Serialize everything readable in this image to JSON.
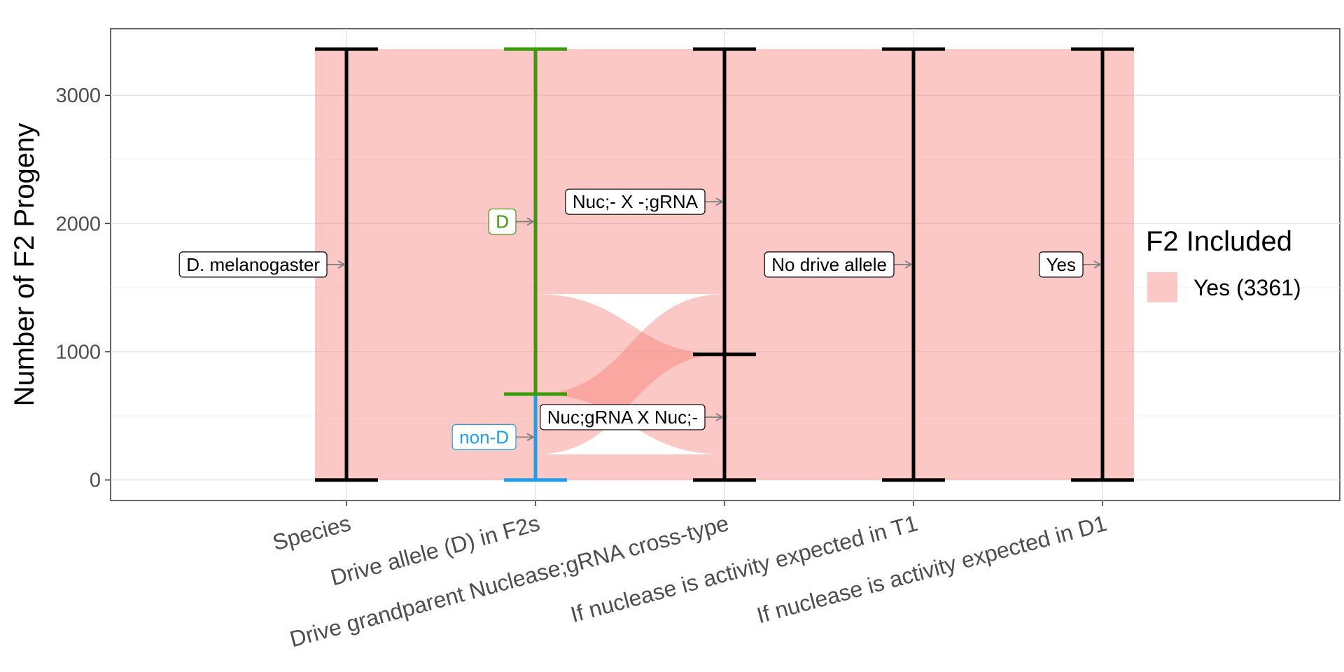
{
  "chart_data": {
    "type": "alluvial",
    "ylabel": "Number of F2 Progeny",
    "yticks": [
      0,
      1000,
      2000,
      3000
    ],
    "ylim": [
      -160,
      3520
    ],
    "total": 3361,
    "axes": [
      {
        "name": "Species",
        "strata": [
          {
            "label": "D. melanogaster",
            "value": 3361,
            "color": "#000000",
            "label_color": "#000000",
            "label_border": "#000000"
          }
        ]
      },
      {
        "name": "Drive allele (D) in F2s",
        "strata": [
          {
            "label": "non-D",
            "value": 670,
            "color": "#1f9fea",
            "label_color": "#1f9fea",
            "label_border": "#1f9fea"
          },
          {
            "label": "D",
            "value": 2691,
            "color": "#3a9a0c",
            "label_color": "#3a9a0c",
            "label_border": "#3a9a0c"
          }
        ]
      },
      {
        "name": "Drive grandparent Nuclease;gRNA cross-type",
        "strata": [
          {
            "label": "Nuc;gRNA X Nuc;-",
            "value": 980,
            "color": "#000000",
            "label_color": "#000000",
            "label_border": "#000000"
          },
          {
            "label": "Nuc;- X -;gRNA",
            "value": 2381,
            "color": "#000000",
            "label_color": "#000000",
            "label_border": "#000000"
          }
        ]
      },
      {
        "name": "If nuclease is activity expected in T1",
        "strata": [
          {
            "label": "No drive allele",
            "value": 3361,
            "color": "#000000",
            "label_color": "#000000",
            "label_border": "#000000"
          }
        ]
      },
      {
        "name": "If nuclease is activity expected in D1",
        "strata": [
          {
            "label": "Yes",
            "value": 3361,
            "color": "#000000",
            "label_color": "#000000",
            "label_border": "#000000"
          }
        ]
      }
    ],
    "flows_axis2_to_axis3": [
      {
        "from": "non-D",
        "to": "Nuc;gRNA X Nuc;-",
        "value": 200
      },
      {
        "from": "non-D",
        "to": "Nuc;- X -;gRNA",
        "value": 470
      },
      {
        "from": "D",
        "to": "Nuc;gRNA X Nuc;-",
        "value": 780
      },
      {
        "from": "D",
        "to": "Nuc;- X -;gRNA",
        "value": 1911
      }
    ],
    "fill_color": "#f8766d",
    "legend": {
      "title": "F2 Included",
      "entries": [
        {
          "label": "Yes (3361)",
          "color": "#f8766d"
        }
      ]
    }
  }
}
